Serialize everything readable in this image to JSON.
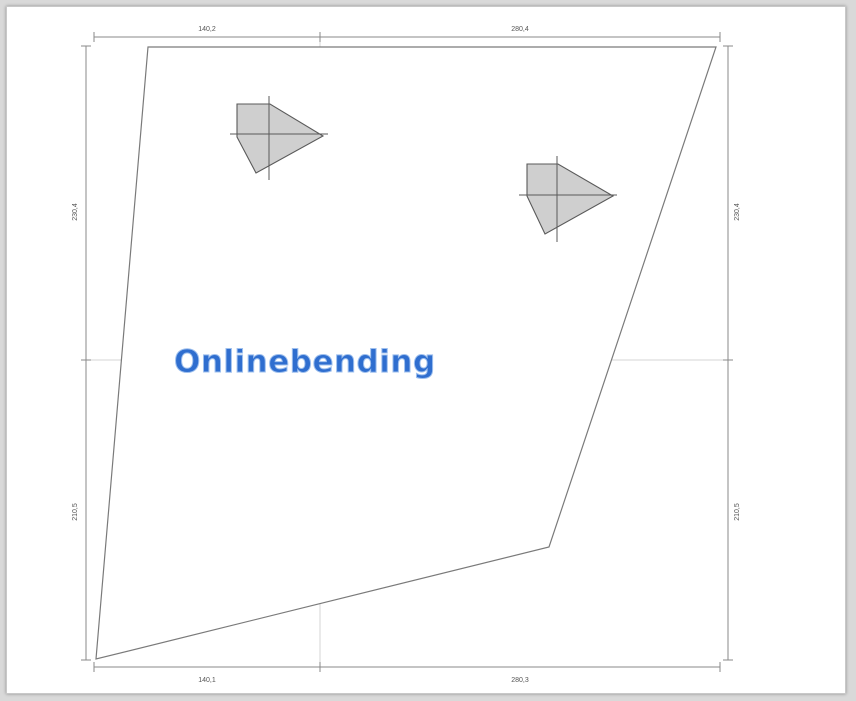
{
  "canvas": {
    "background": "#ffffff",
    "frame_border": "#c8c8c8"
  },
  "drawing": {
    "outline_color": "#7a7a7a",
    "dimension_color": "#8a8a8a",
    "center_line_color": "#d0d0d0",
    "cutout_fill": "#cfcfcf",
    "cutout_stroke": "#5a5a5a"
  },
  "dimensions": {
    "top_left": "140,2",
    "top_right": "280,4",
    "bottom_left": "140,1",
    "bottom_right": "280,3",
    "left_upper": "230,4",
    "left_lower": "210,5",
    "right_upper": "230,4",
    "right_lower": "210,5"
  },
  "watermark": {
    "text": "Onlinebending",
    "color": "#2f6ecf",
    "outline": "#9fc0ee"
  }
}
